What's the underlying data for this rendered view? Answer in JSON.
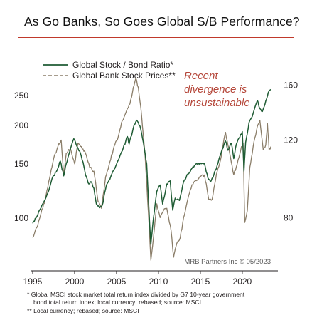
{
  "title": "As Go Banks, So Goes Global S/B Performance?",
  "accent_color": "#c0392b",
  "chart_data": {
    "type": "line",
    "x_ticks": [
      "1995",
      "2000",
      "2005",
      "2010",
      "2015",
      "2020"
    ],
    "x_range": [
      1995.0,
      2023.4
    ],
    "left_axis": {
      "ticks": [
        "100",
        "150",
        "200",
        "250"
      ],
      "scale": "log",
      "range": [
        68,
        300
      ]
    },
    "right_axis": {
      "ticks": [
        "80",
        "120",
        "160"
      ],
      "scale": "log",
      "range": [
        61,
        172
      ]
    },
    "series": [
      {
        "name": "Global Stock / Bond Ratio*",
        "axis": "left",
        "color": "#1f5c34",
        "style": "solid",
        "points": [
          [
            1995.0,
            96
          ],
          [
            1995.4,
            100
          ],
          [
            1996.0,
            108
          ],
          [
            1996.5,
            115
          ],
          [
            1997.0,
            125
          ],
          [
            1997.3,
            134
          ],
          [
            1997.8,
            141
          ],
          [
            1998.3,
            153
          ],
          [
            1998.7,
            137
          ],
          [
            1999.0,
            150
          ],
          [
            1999.5,
            168
          ],
          [
            1999.9,
            181
          ],
          [
            2000.2,
            173
          ],
          [
            2000.6,
            165
          ],
          [
            2001.0,
            152
          ],
          [
            2001.3,
            138
          ],
          [
            2001.7,
            129
          ],
          [
            2002.0,
            131
          ],
          [
            2002.3,
            125
          ],
          [
            2002.6,
            111
          ],
          [
            2003.0,
            108
          ],
          [
            2003.3,
            110
          ],
          [
            2003.8,
            128
          ],
          [
            2004.3,
            136
          ],
          [
            2004.8,
            145
          ],
          [
            2005.3,
            156
          ],
          [
            2005.8,
            169
          ],
          [
            2006.3,
            184
          ],
          [
            2006.5,
            174
          ],
          [
            2007.0,
            196
          ],
          [
            2007.4,
            208
          ],
          [
            2007.8,
            199
          ],
          [
            2008.2,
            176
          ],
          [
            2008.6,
            150
          ],
          [
            2008.9,
            102
          ],
          [
            2009.1,
            82
          ],
          [
            2009.3,
            94
          ],
          [
            2009.8,
            122
          ],
          [
            2010.2,
            128
          ],
          [
            2010.5,
            111
          ],
          [
            2011.0,
            129
          ],
          [
            2011.4,
            132
          ],
          [
            2011.7,
            106
          ],
          [
            2012.0,
            116
          ],
          [
            2012.5,
            114
          ],
          [
            2013.0,
            131
          ],
          [
            2013.5,
            139
          ],
          [
            2014.0,
            145
          ],
          [
            2014.5,
            150
          ],
          [
            2015.0,
            151
          ],
          [
            2015.5,
            150
          ],
          [
            2015.9,
            135
          ],
          [
            2016.2,
            131
          ],
          [
            2016.6,
            138
          ],
          [
            2017.0,
            148
          ],
          [
            2017.5,
            164
          ],
          [
            2018.0,
            178
          ],
          [
            2018.3,
            166
          ],
          [
            2018.7,
            175
          ],
          [
            2018.98,
            156
          ],
          [
            2019.3,
            174
          ],
          [
            2019.8,
            187
          ],
          [
            2020.0,
            191
          ],
          [
            2020.2,
            142
          ],
          [
            2020.4,
            176
          ],
          [
            2020.8,
            204
          ],
          [
            2021.3,
            219
          ],
          [
            2021.8,
            241
          ],
          [
            2022.0,
            230
          ],
          [
            2022.4,
            222
          ],
          [
            2022.8,
            240
          ],
          [
            2023.1,
            256
          ],
          [
            2023.4,
            262
          ]
        ]
      },
      {
        "name": "Global Bank Stock Prices**",
        "axis": "right",
        "color": "#8a7d68",
        "style": "dashed",
        "points": [
          [
            1995.0,
            72
          ],
          [
            1995.5,
            76
          ],
          [
            1996.0,
            82
          ],
          [
            1996.5,
            88
          ],
          [
            1997.0,
            98
          ],
          [
            1997.5,
            109
          ],
          [
            1998.0,
            116
          ],
          [
            1998.4,
            120
          ],
          [
            1998.7,
            100
          ],
          [
            1999.0,
            112
          ],
          [
            1999.5,
            115
          ],
          [
            2000.0,
            106
          ],
          [
            2000.4,
            118
          ],
          [
            2000.8,
            116
          ],
          [
            2001.3,
            112
          ],
          [
            2001.8,
            104
          ],
          [
            2002.3,
            102
          ],
          [
            2002.8,
            87
          ],
          [
            2003.2,
            84
          ],
          [
            2003.7,
            99
          ],
          [
            2004.2,
            107
          ],
          [
            2004.7,
            116
          ],
          [
            2005.2,
            122
          ],
          [
            2005.7,
            133
          ],
          [
            2006.2,
            140
          ],
          [
            2006.6,
            145
          ],
          [
            2007.0,
            158
          ],
          [
            2007.3,
            166
          ],
          [
            2007.6,
            158
          ],
          [
            2008.0,
            136
          ],
          [
            2008.4,
            111
          ],
          [
            2008.8,
            82
          ],
          [
            2009.1,
            64
          ],
          [
            2009.4,
            72
          ],
          [
            2009.8,
            86
          ],
          [
            2010.2,
            80
          ],
          [
            2010.6,
            83
          ],
          [
            2011.0,
            84
          ],
          [
            2011.5,
            75
          ],
          [
            2011.8,
            65
          ],
          [
            2012.2,
            70
          ],
          [
            2012.6,
            72
          ],
          [
            2013.0,
            80
          ],
          [
            2013.5,
            88
          ],
          [
            2014.0,
            95
          ],
          [
            2014.5,
            97
          ],
          [
            2015.0,
            99
          ],
          [
            2015.5,
            100
          ],
          [
            2016.0,
            88
          ],
          [
            2016.4,
            88
          ],
          [
            2016.9,
            100
          ],
          [
            2017.4,
            108
          ],
          [
            2017.8,
            120
          ],
          [
            2018.0,
            125
          ],
          [
            2018.5,
            112
          ],
          [
            2018.98,
            100
          ],
          [
            2019.4,
            106
          ],
          [
            2019.9,
            116
          ],
          [
            2020.1,
            118
          ],
          [
            2020.3,
            78
          ],
          [
            2020.6,
            83
          ],
          [
            2020.9,
            104
          ],
          [
            2021.3,
            116
          ],
          [
            2021.8,
            129
          ],
          [
            2022.1,
            133
          ],
          [
            2022.5,
            114
          ],
          [
            2022.8,
            117
          ],
          [
            2023.0,
            131
          ],
          [
            2023.2,
            114
          ],
          [
            2023.4,
            116
          ]
        ]
      }
    ],
    "legend": {
      "placement": "top-left",
      "entries": [
        "Global Stock / Bond Ratio*",
        "Global Bank Stock Prices**"
      ]
    },
    "annotation": [
      "Recent",
      "divergence is",
      "unsustainable"
    ],
    "credit": "MRB Partners Inc © 05/2023"
  },
  "footnotes": [
    "*  Global MSCI stock market total return index divided by G7 10-year government",
    "bond total return index; local currency; rebased; source: MSCI",
    "** Local currency; rebased; source: MSCI"
  ]
}
